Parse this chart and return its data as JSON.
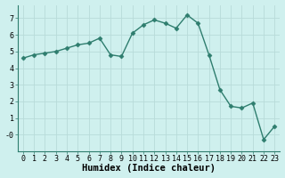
{
  "x": [
    0,
    1,
    2,
    3,
    4,
    5,
    6,
    7,
    8,
    9,
    10,
    11,
    12,
    13,
    14,
    15,
    16,
    17,
    18,
    19,
    20,
    21,
    22,
    23
  ],
  "y": [
    4.6,
    4.8,
    4.9,
    5.0,
    5.2,
    5.4,
    5.5,
    5.8,
    4.8,
    4.7,
    6.1,
    6.6,
    6.9,
    6.7,
    6.4,
    7.2,
    6.7,
    4.8,
    2.7,
    1.7,
    1.6,
    1.9,
    -0.3,
    0.5
  ],
  "line_color": "#2e7d6e",
  "marker": "D",
  "marker_size": 2.5,
  "bg_color": "#cff0ee",
  "grid_color": "#b8dbd9",
  "xlabel": "Humidex (Indice chaleur)",
  "ylim": [
    -1,
    7.8
  ],
  "xlim": [
    -0.5,
    23.5
  ],
  "yticks": [
    0,
    1,
    2,
    3,
    4,
    5,
    6,
    7
  ],
  "ytick_labels": [
    "-0",
    "1",
    "2",
    "3",
    "4",
    "5",
    "6",
    "7"
  ],
  "xticks": [
    0,
    1,
    2,
    3,
    4,
    5,
    6,
    7,
    8,
    9,
    10,
    11,
    12,
    13,
    14,
    15,
    16,
    17,
    18,
    19,
    20,
    21,
    22,
    23
  ],
  "tick_label_fontsize": 6,
  "xlabel_fontsize": 7.5,
  "line_width": 1.0
}
